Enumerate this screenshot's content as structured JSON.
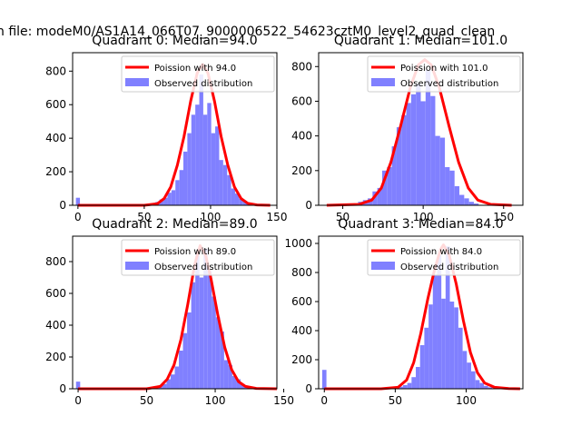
{
  "suptitle": "n file: modeM0/AS1A14_066T07_9000006522_54623cztM0_level2_quad_clean",
  "colors": {
    "hist": "#8080ff",
    "fit": "#ff0000",
    "fit_peak": "#ff8080",
    "frame": "#000000"
  },
  "chart_data": [
    {
      "type": "bar",
      "title": "Quadrant 0: Median=94.0",
      "xlim": [
        -4,
        150
      ],
      "ylim": [
        0,
        910
      ],
      "xticks": [
        0,
        50,
        100,
        150
      ],
      "yticks": [
        0,
        200,
        400,
        600,
        800
      ],
      "legend": {
        "placement": "top-right",
        "fit_label": "Poission with 94.0",
        "hist_label": "Observed distribution"
      },
      "bin_width": 3.0,
      "hist": [
        [
          0,
          45
        ],
        [
          48,
          8
        ],
        [
          54,
          10
        ],
        [
          57,
          8
        ],
        [
          60,
          20
        ],
        [
          63,
          35
        ],
        [
          66,
          45
        ],
        [
          69,
          75
        ],
        [
          72,
          90
        ],
        [
          75,
          150
        ],
        [
          78,
          210
        ],
        [
          81,
          320
        ],
        [
          84,
          430
        ],
        [
          87,
          540
        ],
        [
          90,
          600
        ],
        [
          93,
          780
        ],
        [
          96,
          540
        ],
        [
          99,
          610
        ],
        [
          102,
          430
        ],
        [
          105,
          470
        ],
        [
          108,
          270
        ],
        [
          111,
          240
        ],
        [
          114,
          180
        ],
        [
          117,
          100
        ],
        [
          120,
          70
        ],
        [
          123,
          40
        ],
        [
          126,
          25
        ],
        [
          129,
          15
        ],
        [
          132,
          8
        ]
      ],
      "fit": [
        [
          0,
          0
        ],
        [
          50,
          0
        ],
        [
          60,
          10
        ],
        [
          65,
          40
        ],
        [
          70,
          110
        ],
        [
          75,
          240
        ],
        [
          80,
          410
        ],
        [
          85,
          620
        ],
        [
          90,
          790
        ],
        [
          94,
          840
        ],
        [
          98,
          790
        ],
        [
          103,
          620
        ],
        [
          108,
          410
        ],
        [
          113,
          240
        ],
        [
          118,
          110
        ],
        [
          123,
          40
        ],
        [
          128,
          12
        ],
        [
          135,
          2
        ],
        [
          145,
          0
        ]
      ]
    },
    {
      "type": "bar",
      "title": "Quadrant 1: Median=101.0",
      "xlim": [
        35,
        162
      ],
      "ylim": [
        0,
        880
      ],
      "xticks": [
        50,
        100,
        150
      ],
      "yticks": [
        0,
        200,
        400,
        600,
        800
      ],
      "legend": {
        "placement": "top-right",
        "fit_label": "Poission with 101.0",
        "hist_label": "Observed distribution"
      },
      "bin_width": 3.0,
      "hist": [
        [
          52,
          8
        ],
        [
          58,
          8
        ],
        [
          61,
          20
        ],
        [
          64,
          30
        ],
        [
          67,
          40
        ],
        [
          70,
          80
        ],
        [
          73,
          100
        ],
        [
          76,
          200
        ],
        [
          79,
          220
        ],
        [
          82,
          340
        ],
        [
          85,
          450
        ],
        [
          88,
          520
        ],
        [
          91,
          590
        ],
        [
          94,
          640
        ],
        [
          97,
          700
        ],
        [
          100,
          600
        ],
        [
          103,
          780
        ],
        [
          106,
          630
        ],
        [
          109,
          400
        ],
        [
          112,
          390
        ],
        [
          115,
          220
        ],
        [
          118,
          200
        ],
        [
          121,
          110
        ],
        [
          124,
          60
        ],
        [
          127,
          40
        ],
        [
          130,
          20
        ],
        [
          133,
          10
        ]
      ],
      "fit": [
        [
          40,
          0
        ],
        [
          60,
          5
        ],
        [
          68,
          30
        ],
        [
          74,
          100
        ],
        [
          80,
          250
        ],
        [
          86,
          460
        ],
        [
          92,
          680
        ],
        [
          97,
          810
        ],
        [
          101,
          840
        ],
        [
          105,
          810
        ],
        [
          110,
          680
        ],
        [
          116,
          460
        ],
        [
          122,
          250
        ],
        [
          128,
          100
        ],
        [
          134,
          30
        ],
        [
          142,
          5
        ],
        [
          155,
          0
        ]
      ]
    },
    {
      "type": "bar",
      "title": "Quadrant 2: Median=89.0",
      "xlim": [
        -4,
        145
      ],
      "ylim": [
        0,
        960
      ],
      "xticks": [
        0,
        50,
        100,
        150
      ],
      "yticks": [
        0,
        200,
        400,
        600,
        800
      ],
      "legend": {
        "placement": "top-right",
        "fit_label": "Poission with 89.0",
        "hist_label": "Observed distribution"
      },
      "bin_width": 3.0,
      "hist": [
        [
          0,
          45
        ],
        [
          48,
          8
        ],
        [
          54,
          8
        ],
        [
          57,
          10
        ],
        [
          60,
          20
        ],
        [
          63,
          30
        ],
        [
          66,
          60
        ],
        [
          69,
          90
        ],
        [
          72,
          140
        ],
        [
          75,
          240
        ],
        [
          78,
          350
        ],
        [
          81,
          480
        ],
        [
          84,
          670
        ],
        [
          87,
          850
        ],
        [
          90,
          700
        ],
        [
          93,
          880
        ],
        [
          96,
          740
        ],
        [
          99,
          580
        ],
        [
          102,
          450
        ],
        [
          105,
          360
        ],
        [
          108,
          180
        ],
        [
          111,
          150
        ],
        [
          114,
          80
        ],
        [
          117,
          60
        ],
        [
          120,
          30
        ],
        [
          123,
          15
        ],
        [
          126,
          8
        ]
      ],
      "fit": [
        [
          0,
          0
        ],
        [
          50,
          0
        ],
        [
          60,
          15
        ],
        [
          65,
          60
        ],
        [
          70,
          150
        ],
        [
          75,
          310
        ],
        [
          80,
          530
        ],
        [
          85,
          780
        ],
        [
          89,
          900
        ],
        [
          93,
          840
        ],
        [
          97,
          690
        ],
        [
          102,
          460
        ],
        [
          107,
          260
        ],
        [
          112,
          120
        ],
        [
          117,
          45
        ],
        [
          122,
          15
        ],
        [
          130,
          2
        ],
        [
          145,
          0
        ]
      ]
    },
    {
      "type": "bar",
      "title": "Quadrant 3: Median=84.0",
      "xlim": [
        -4,
        140
      ],
      "ylim": [
        0,
        1050
      ],
      "xticks": [
        0,
        50,
        100
      ],
      "yticks": [
        0,
        200,
        400,
        600,
        800,
        1000
      ],
      "legend": {
        "placement": "top-right",
        "fit_label": "Poission with 84.0",
        "hist_label": "Observed distribution"
      },
      "bin_width": 3.0,
      "hist": [
        [
          0,
          130
        ],
        [
          45,
          8
        ],
        [
          51,
          10
        ],
        [
          54,
          15
        ],
        [
          57,
          25
        ],
        [
          60,
          40
        ],
        [
          63,
          80
        ],
        [
          66,
          150
        ],
        [
          69,
          300
        ],
        [
          72,
          420
        ],
        [
          75,
          580
        ],
        [
          78,
          780
        ],
        [
          81,
          920
        ],
        [
          84,
          620
        ],
        [
          87,
          980
        ],
        [
          90,
          600
        ],
        [
          93,
          560
        ],
        [
          96,
          420
        ],
        [
          99,
          260
        ],
        [
          102,
          180
        ],
        [
          105,
          120
        ],
        [
          108,
          60
        ],
        [
          111,
          40
        ],
        [
          114,
          20
        ],
        [
          117,
          10
        ]
      ],
      "fit": [
        [
          0,
          0
        ],
        [
          40,
          0
        ],
        [
          52,
          10
        ],
        [
          58,
          60
        ],
        [
          63,
          180
        ],
        [
          68,
          380
        ],
        [
          73,
          620
        ],
        [
          78,
          830
        ],
        [
          82,
          960
        ],
        [
          84,
          990
        ],
        [
          88,
          920
        ],
        [
          93,
          720
        ],
        [
          98,
          470
        ],
        [
          103,
          250
        ],
        [
          108,
          110
        ],
        [
          113,
          40
        ],
        [
          120,
          10
        ],
        [
          130,
          1
        ],
        [
          138,
          0
        ]
      ]
    }
  ]
}
